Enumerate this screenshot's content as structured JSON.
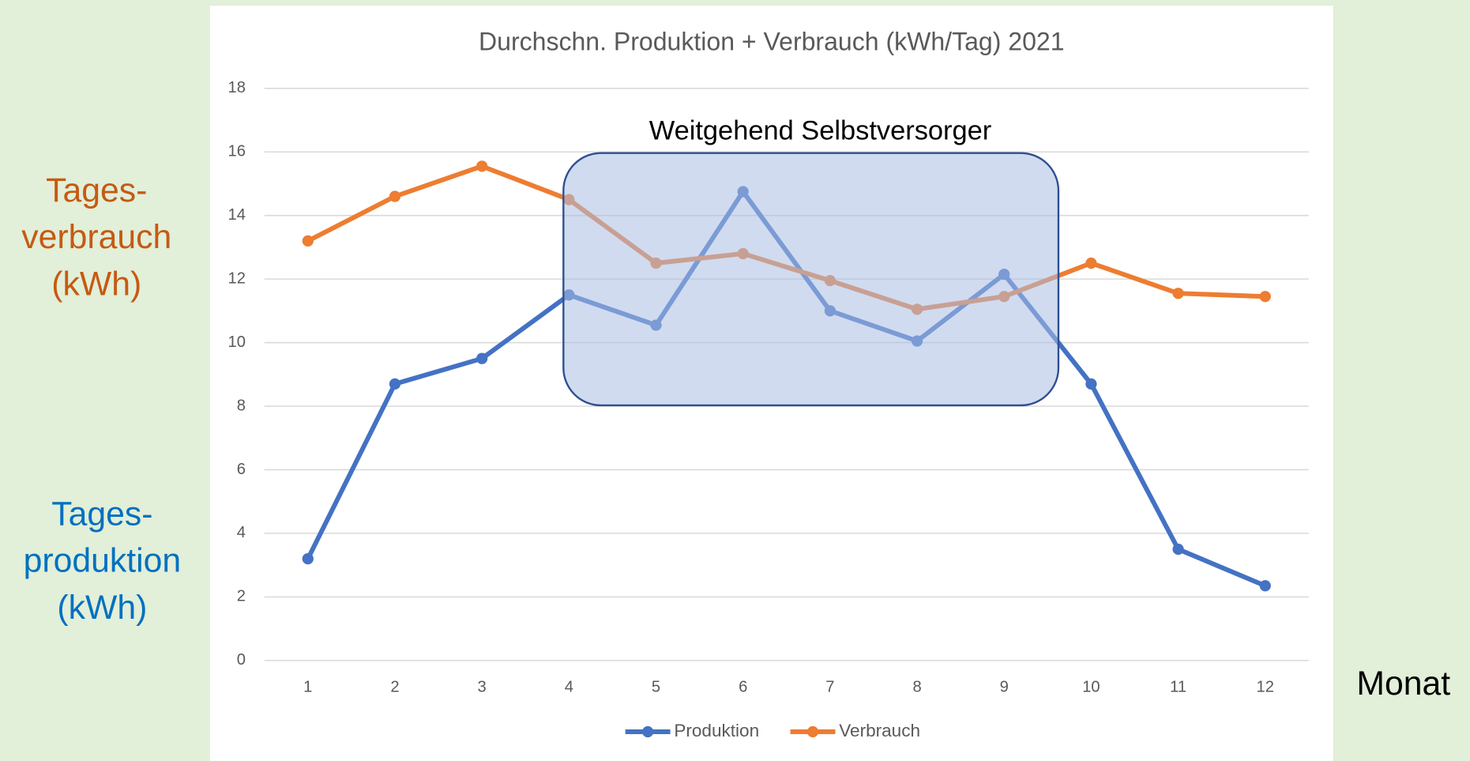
{
  "chart_data": {
    "type": "line",
    "title": "Durchschn. Produktion + Verbrauch (kWh/Tag) 2021",
    "annotation": "Weitgehend Selbstversorger",
    "side_labels": [
      {
        "lines": [
          "Tages-",
          "verbrauch",
          "(kWh)"
        ],
        "color": "#c55a11"
      },
      {
        "lines": [
          "Tages-",
          "produktion",
          "(kWh)"
        ],
        "color": "#0070c0"
      }
    ],
    "x_label": "Monat",
    "categories": [
      "1",
      "2",
      "3",
      "4",
      "5",
      "6",
      "7",
      "8",
      "9",
      "10",
      "11",
      "12"
    ],
    "series": [
      {
        "name": "Produktion",
        "color": "#4472c4",
        "values": [
          3.2,
          8.7,
          9.5,
          11.5,
          10.55,
          14.75,
          11.0,
          10.05,
          12.15,
          8.7,
          3.5,
          2.35
        ]
      },
      {
        "name": "Verbrauch",
        "color": "#ed7d31",
        "values": [
          13.2,
          14.6,
          15.55,
          14.5,
          12.5,
          12.8,
          11.95,
          11.05,
          11.45,
          12.5,
          11.55,
          11.45
        ]
      }
    ],
    "ylim": [
      0,
      18
    ],
    "yticks": [
      0,
      2,
      4,
      6,
      8,
      10,
      12,
      14,
      16,
      18
    ],
    "grid": true
  }
}
